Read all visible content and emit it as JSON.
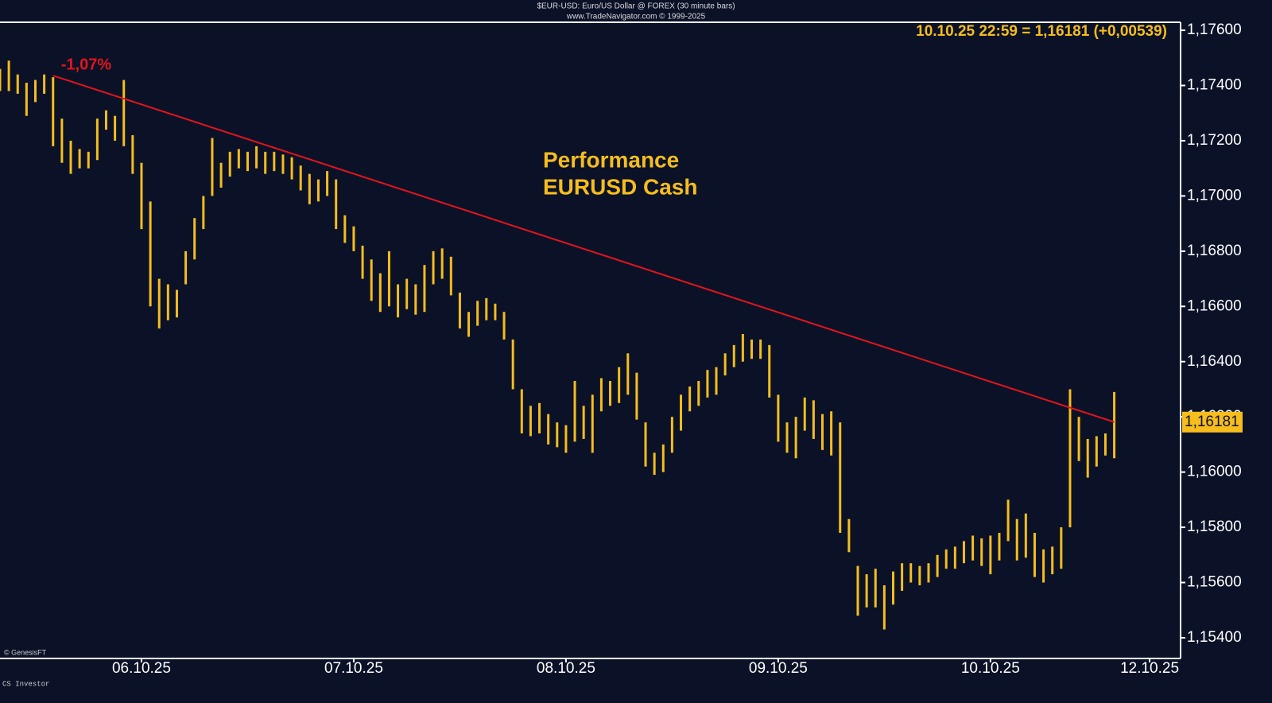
{
  "chart_data": {
    "type": "hl_bars",
    "title": "$EUR-USD: Euro/US Dollar @ FOREX  (30 minute bars)",
    "subtitle": "www.TradeNavigator.com © 1999-2025",
    "readout": "10.10.25 22:59 = 1,16181 (+0,00539)",
    "annotations": [
      "Performance",
      "EURUSD Cash"
    ],
    "trend_label": "-1,07%",
    "footer": "© GenesisFT",
    "footer2": "CS Investor",
    "color": "#f6bd1d",
    "x": [
      0,
      1,
      2,
      3,
      4,
      5,
      6,
      7,
      8,
      9,
      10,
      11,
      12,
      13,
      14,
      15,
      16,
      17,
      18,
      19,
      20,
      21,
      22,
      23,
      24,
      25,
      26,
      27,
      28,
      29,
      30,
      31,
      32,
      33,
      34,
      35,
      36,
      37,
      38,
      39,
      40,
      41,
      42,
      43,
      44,
      45,
      46,
      47,
      48,
      49,
      50,
      51,
      52,
      53,
      54,
      55,
      56,
      57,
      58,
      59,
      60,
      61,
      62,
      63,
      64,
      65,
      66,
      67,
      68,
      69,
      70,
      71,
      72,
      73,
      74,
      75,
      76,
      77,
      78,
      79,
      80,
      81,
      82,
      83,
      84,
      85,
      86,
      87,
      88,
      89,
      90,
      91,
      92,
      93,
      94,
      95,
      96,
      97,
      98,
      99,
      100,
      101,
      102,
      103,
      104,
      105,
      106,
      107,
      108,
      109,
      110,
      111,
      112,
      113,
      114,
      115,
      116,
      117,
      118,
      119,
      120,
      121,
      122,
      123,
      124,
      125,
      126
    ],
    "high": [
      1.1746,
      1.1749,
      1.1744,
      1.1741,
      1.1742,
      1.1744,
      1.1743,
      1.1728,
      1.172,
      1.1717,
      1.1716,
      1.1728,
      1.1731,
      1.1729,
      1.1742,
      1.1722,
      1.1712,
      1.1698,
      1.167,
      1.1668,
      1.1666,
      1.168,
      1.1692,
      1.17,
      1.1721,
      1.1712,
      1.1716,
      1.1717,
      1.1716,
      1.1718,
      1.1716,
      1.1716,
      1.1715,
      1.1714,
      1.1711,
      1.1708,
      1.1706,
      1.1709,
      1.1706,
      1.1693,
      1.1689,
      1.1682,
      1.1677,
      1.1672,
      1.168,
      1.1668,
      1.167,
      1.1668,
      1.1675,
      1.168,
      1.1681,
      1.1678,
      1.1665,
      1.1658,
      1.1662,
      1.1663,
      1.1661,
      1.1658,
      1.1648,
      1.163,
      1.1624,
      1.1625,
      1.1621,
      1.1618,
      1.1617,
      1.1633,
      1.1624,
      1.1628,
      1.1634,
      1.1633,
      1.1638,
      1.1643,
      1.1636,
      1.1618,
      1.1607,
      1.161,
      1.162,
      1.1628,
      1.1631,
      1.1633,
      1.1637,
      1.1638,
      1.1643,
      1.1646,
      1.165,
      1.1648,
      1.1648,
      1.1646,
      1.1628,
      1.1618,
      1.162,
      1.1627,
      1.1626,
      1.1621,
      1.1622,
      1.1618,
      1.1583,
      1.1566,
      1.1563,
      1.1565,
      1.1559,
      1.1564,
      1.1567,
      1.1567,
      1.1566,
      1.1567,
      1.157,
      1.1572,
      1.1573,
      1.1575,
      1.1577,
      1.1576,
      1.1577,
      1.1578,
      1.159,
      1.1583,
      1.1585,
      1.1578,
      1.1572,
      1.1573,
      1.158,
      1.163,
      1.162,
      1.1612,
      1.1613,
      1.1614,
      1.1629
    ],
    "low": [
      1.1738,
      1.1738,
      1.1737,
      1.1729,
      1.1734,
      1.1737,
      1.1718,
      1.1712,
      1.1708,
      1.171,
      1.171,
      1.1713,
      1.1724,
      1.172,
      1.1718,
      1.1708,
      1.1688,
      1.166,
      1.1652,
      1.1655,
      1.1656,
      1.1668,
      1.1677,
      1.1688,
      1.17,
      1.1703,
      1.1707,
      1.171,
      1.1709,
      1.171,
      1.1708,
      1.1709,
      1.1708,
      1.1706,
      1.1702,
      1.1697,
      1.1698,
      1.17,
      1.1688,
      1.1683,
      1.168,
      1.167,
      1.1662,
      1.1658,
      1.166,
      1.1656,
      1.1659,
      1.1657,
      1.1658,
      1.1668,
      1.167,
      1.1664,
      1.1652,
      1.1649,
      1.1653,
      1.1655,
      1.1655,
      1.1648,
      1.163,
      1.1614,
      1.1613,
      1.1614,
      1.161,
      1.1609,
      1.1607,
      1.1611,
      1.1612,
      1.1607,
      1.1622,
      1.1624,
      1.1625,
      1.1628,
      1.1619,
      1.1602,
      1.1599,
      1.16,
      1.1607,
      1.1615,
      1.1622,
      1.1624,
      1.1627,
      1.1628,
      1.1635,
      1.1638,
      1.164,
      1.1641,
      1.1641,
      1.1627,
      1.1611,
      1.1607,
      1.1605,
      1.1615,
      1.1612,
      1.1608,
      1.1606,
      1.1578,
      1.1571,
      1.1548,
      1.1551,
      1.1551,
      1.1543,
      1.1552,
      1.1557,
      1.156,
      1.1559,
      1.156,
      1.1562,
      1.1565,
      1.1565,
      1.1567,
      1.1568,
      1.1566,
      1.1563,
      1.1568,
      1.1575,
      1.1568,
      1.1569,
      1.1562,
      1.156,
      1.1563,
      1.1565,
      1.158,
      1.1604,
      1.1598,
      1.1602,
      1.1606,
      1.1605
    ],
    "trendline": {
      "x": [
        6,
        126
      ],
      "values": [
        1.17436,
        1.16181
      ],
      "color": "#e4141b"
    },
    "last": {
      "value": 1.16181,
      "label": "1,16181"
    },
    "xlim": [
      0,
      133.5
    ],
    "xticks": [
      {
        "value": 16,
        "label": "06.10.25"
      },
      {
        "value": 40,
        "label": "07.10.25"
      },
      {
        "value": 64,
        "label": "08.10.25"
      },
      {
        "value": 88,
        "label": "09.10.25"
      },
      {
        "value": 112,
        "label": "10.10.25"
      },
      {
        "value": 130,
        "label": "12.10.25"
      }
    ],
    "ylim": [
      1.15325,
      1.17629
    ],
    "yticks": [
      {
        "value": 1.154,
        "label": "1,15400"
      },
      {
        "value": 1.156,
        "label": "1,15600"
      },
      {
        "value": 1.158,
        "label": "1,15800"
      },
      {
        "value": 1.16,
        "label": "1,16000"
      },
      {
        "value": 1.162,
        "label": "1,16200"
      },
      {
        "value": 1.164,
        "label": "1,16400"
      },
      {
        "value": 1.166,
        "label": "1,16600"
      },
      {
        "value": 1.168,
        "label": "1,16800"
      },
      {
        "value": 1.17,
        "label": "1,17000"
      },
      {
        "value": 1.172,
        "label": "1,17200"
      },
      {
        "value": 1.174,
        "label": "1,17400"
      },
      {
        "value": 1.176,
        "label": "1,17600"
      }
    ],
    "grid": false
  }
}
